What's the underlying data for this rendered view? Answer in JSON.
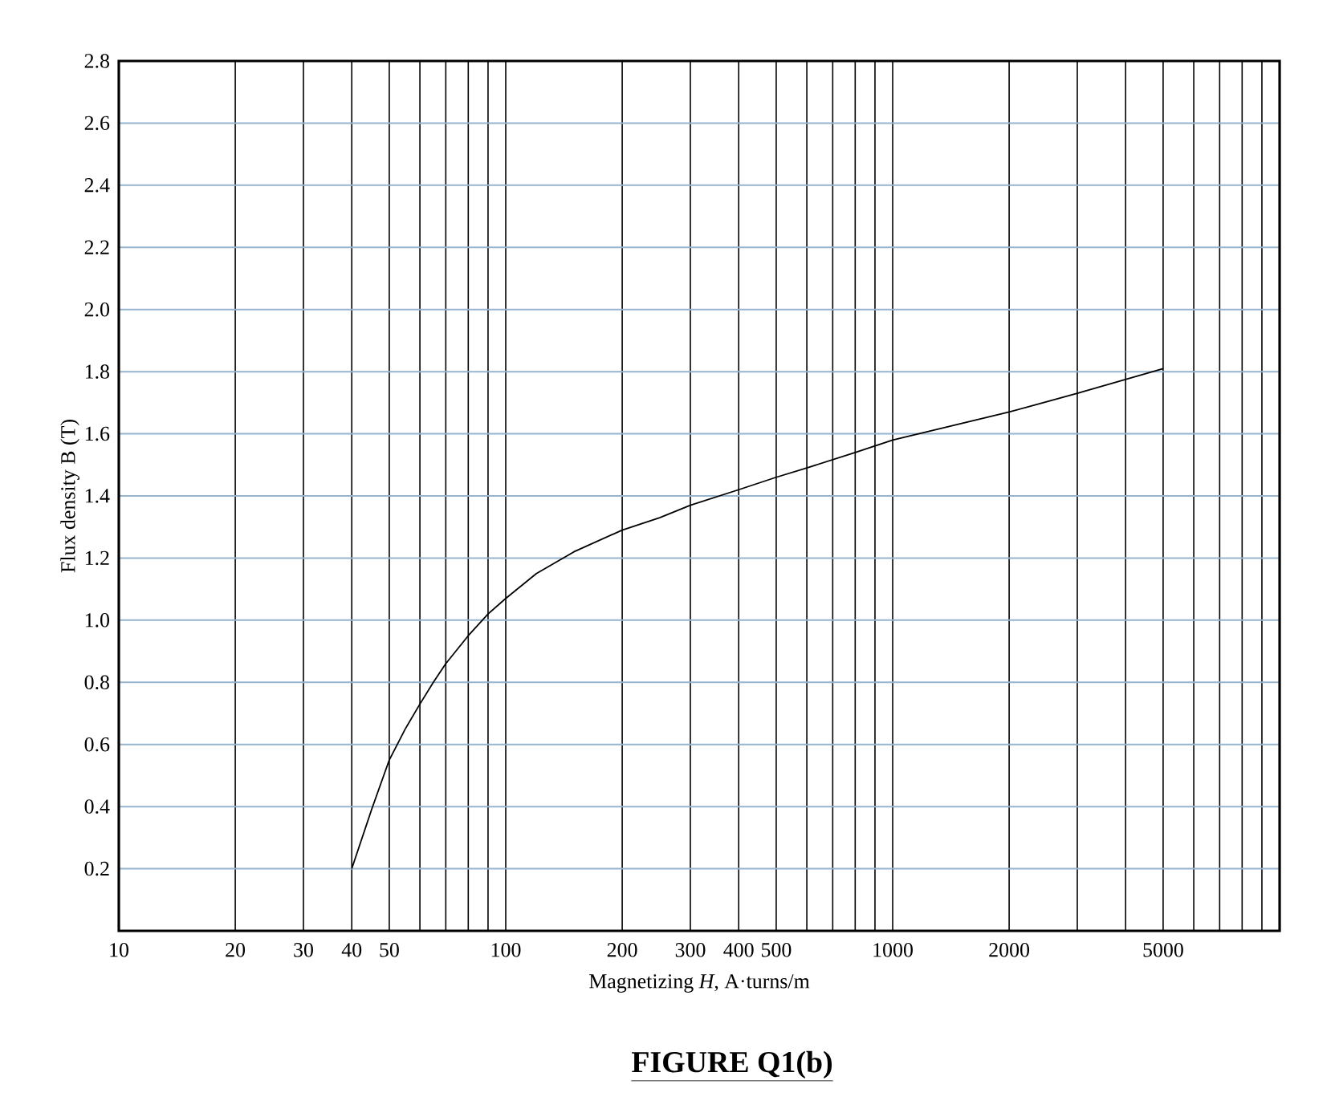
{
  "chart_data": {
    "type": "line",
    "title": "FIGURE Q1(b)",
    "xlabel": "Magnetizing *H*, A·turns/m",
    "ylabel": "Flux density B (T)",
    "log": "x",
    "grid": true,
    "marker": "none",
    "line_style": "solid",
    "xlim": [
      10,
      10000
    ],
    "ylim": [
      0,
      2.8
    ],
    "xticks": [
      10,
      20,
      30,
      40,
      50,
      100,
      200,
      300,
      400,
      500,
      1000,
      2000,
      5000
    ],
    "yticks": [
      0.2,
      0.4,
      0.6,
      0.8,
      {
        "value": 1.0,
        "label": "1.0"
      },
      1.2,
      1.4,
      1.6,
      1.8,
      {
        "value": 2.0,
        "label": "2.0"
      },
      2.2,
      2.4,
      2.6,
      2.8
    ],
    "series": [
      {
        "color": "#000000",
        "x": [
          40,
          45,
          50,
          55,
          60,
          65,
          70,
          80,
          90,
          100,
          120,
          150,
          200,
          250,
          300,
          400,
          500,
          600,
          800,
          1000,
          2000,
          3000,
          5000
        ],
        "values": [
          0.2,
          0.39,
          0.55,
          0.65,
          0.73,
          0.8,
          0.86,
          0.95,
          1.02,
          1.07,
          1.15,
          1.22,
          1.29,
          1.33,
          1.37,
          1.42,
          1.46,
          1.49,
          1.54,
          1.58,
          1.67,
          1.73,
          1.81
        ]
      }
    ]
  }
}
